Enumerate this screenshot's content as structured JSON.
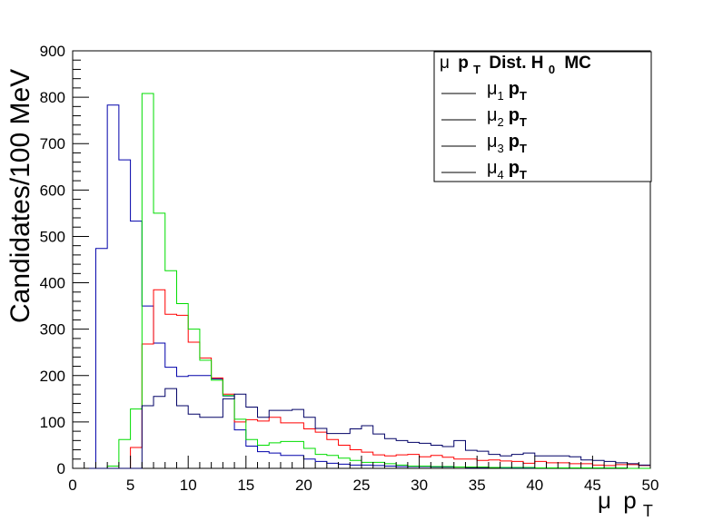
{
  "chart_data": {
    "type": "histogram",
    "title": "",
    "ylabel": "Candidates/100 MeV",
    "xlabel_parts": [
      "μ",
      "p",
      "T"
    ],
    "xlim": [
      0,
      50
    ],
    "ylim": [
      0,
      900
    ],
    "bin_width": 1,
    "x_ticks": [
      "0",
      "5",
      "10",
      "15",
      "20",
      "25",
      "30",
      "35",
      "40",
      "45",
      "50"
    ],
    "y_ticks": [
      "0",
      "100",
      "200",
      "300",
      "400",
      "500",
      "600",
      "700",
      "800",
      "900"
    ],
    "grid": false,
    "legend": {
      "placement": "top-right",
      "header": {
        "mu": "μ",
        "p": "p",
        "T": "T",
        "text": "Dist. H",
        "sub": "0",
        "tail": "MC"
      },
      "entries": [
        {
          "mu": "μ",
          "sub": "1",
          "p": "p",
          "T": "T"
        },
        {
          "mu": "μ",
          "sub": "2",
          "p": "p",
          "T": "T"
        },
        {
          "mu": "μ",
          "sub": "3",
          "p": "p",
          "T": "T"
        },
        {
          "mu": "μ",
          "sub": "4",
          "p": "p",
          "T": "T"
        }
      ]
    },
    "series": [
      {
        "color": "#0000aa",
        "values": [
          0,
          0,
          474,
          783,
          665,
          533,
          350,
          270,
          218,
          198,
          200,
          200,
          193,
          156,
          83,
          48,
          36,
          33,
          28,
          28,
          20,
          15,
          11,
          9,
          7,
          7,
          6,
          5,
          4,
          4,
          4,
          3,
          3,
          3,
          2,
          2,
          2,
          1,
          1,
          1,
          1,
          1,
          1,
          1,
          1,
          1,
          1,
          1,
          0,
          0
        ]
      },
      {
        "color": "#ff0000",
        "values": [
          0,
          0,
          0,
          0,
          0,
          45,
          268,
          385,
          332,
          330,
          272,
          238,
          195,
          160,
          100,
          105,
          102,
          110,
          98,
          98,
          85,
          78,
          62,
          50,
          40,
          35,
          29,
          27,
          29,
          30,
          25,
          28,
          24,
          20,
          20,
          17,
          18,
          16,
          15,
          11,
          15,
          12,
          12,
          10,
          10,
          7,
          6,
          8,
          8,
          6
        ]
      },
      {
        "color": "#00dd00",
        "values": [
          0,
          0,
          0,
          5,
          62,
          128,
          808,
          550,
          426,
          355,
          300,
          233,
          190,
          157,
          106,
          62,
          50,
          55,
          58,
          58,
          43,
          30,
          28,
          22,
          17,
          13,
          13,
          10,
          7,
          5,
          5,
          4,
          4,
          3,
          3,
          3,
          2,
          2,
          2,
          2,
          1,
          1,
          1,
          1,
          1,
          1,
          1,
          1,
          0,
          0
        ]
      },
      {
        "color": "#000066",
        "values": [
          0,
          0,
          0,
          0,
          0,
          0,
          135,
          155,
          172,
          135,
          117,
          110,
          110,
          150,
          160,
          132,
          110,
          125,
          125,
          127,
          110,
          86,
          75,
          75,
          85,
          92,
          74,
          64,
          60,
          56,
          54,
          50,
          47,
          60,
          39,
          37,
          30,
          27,
          30,
          33,
          27,
          27,
          27,
          25,
          18,
          17,
          15,
          12,
          10,
          7
        ]
      }
    ]
  }
}
